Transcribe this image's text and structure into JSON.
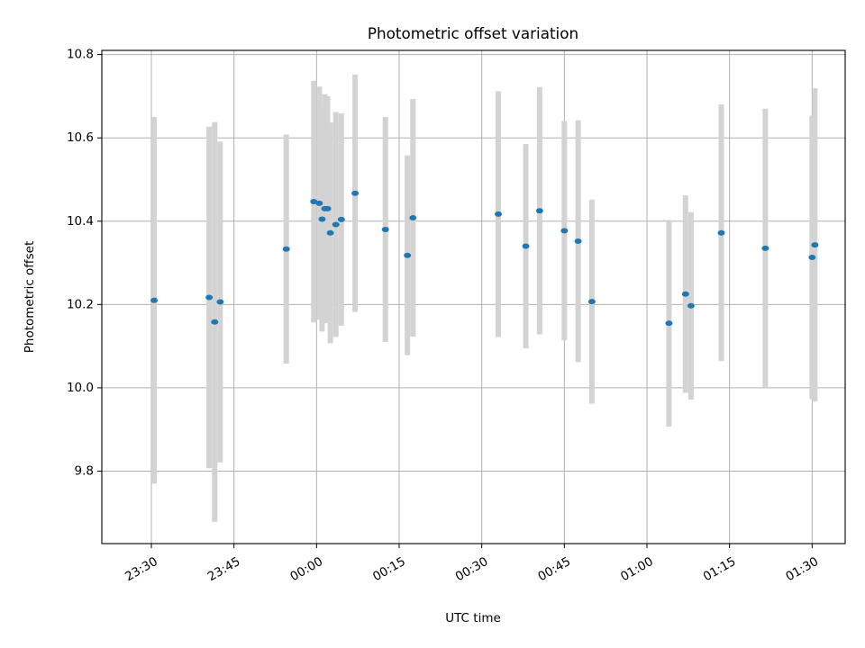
{
  "chart_data": {
    "type": "scatter",
    "title": "Photometric offset variation",
    "xlabel": "UTC time",
    "ylabel": "Photometric offset",
    "xlim": [
      "23:21",
      "01:36"
    ],
    "ylim": [
      9.626,
      10.81
    ],
    "grid": true,
    "x_tick_labels": [
      "23:30",
      "23:45",
      "00:00",
      "00:15",
      "00:30",
      "00:45",
      "01:00",
      "01:15",
      "01:30"
    ],
    "y_ticks": [
      9.8,
      10.0,
      10.2,
      10.4,
      10.6,
      10.8
    ],
    "y_tick_labels": [
      "9.8",
      "10.0",
      "10.2",
      "10.4",
      "10.6",
      "10.8"
    ],
    "series": [
      {
        "marker_color": "#1f77b4",
        "errorbar_color": "#d3d3d3",
        "points": [
          {
            "x": "23:30:30",
            "y": 10.21,
            "err": 0.44
          },
          {
            "x": "23:40:30",
            "y": 10.217,
            "err": 0.41
          },
          {
            "x": "23:41:30",
            "y": 10.158,
            "err": 0.48
          },
          {
            "x": "23:42:30",
            "y": 10.206,
            "err": 0.385
          },
          {
            "x": "23:54:30",
            "y": 10.333,
            "err": 0.275
          },
          {
            "x": "23:59:30",
            "y": 10.447,
            "err": 0.29
          },
          {
            "x": "00:00:30",
            "y": 10.443,
            "err": 0.28
          },
          {
            "x": "00:01:00",
            "y": 10.405,
            "err": 0.27
          },
          {
            "x": "00:01:30",
            "y": 10.43,
            "err": 0.275
          },
          {
            "x": "00:02:00",
            "y": 10.43,
            "err": 0.27
          },
          {
            "x": "00:02:30",
            "y": 10.372,
            "err": 0.265
          },
          {
            "x": "00:03:30",
            "y": 10.392,
            "err": 0.27
          },
          {
            "x": "00:04:30",
            "y": 10.404,
            "err": 0.255
          },
          {
            "x": "00:07:00",
            "y": 10.467,
            "err": 0.285
          },
          {
            "x": "00:12:30",
            "y": 10.38,
            "err": 0.27
          },
          {
            "x": "00:16:30",
            "y": 10.318,
            "err": 0.24
          },
          {
            "x": "00:17:30",
            "y": 10.408,
            "err": 0.285
          },
          {
            "x": "00:33:00",
            "y": 10.417,
            "err": 0.295
          },
          {
            "x": "00:38:00",
            "y": 10.34,
            "err": 0.245
          },
          {
            "x": "00:40:30",
            "y": 10.425,
            "err": 0.297
          },
          {
            "x": "00:45:00",
            "y": 10.377,
            "err": 0.263
          },
          {
            "x": "00:47:30",
            "y": 10.352,
            "err": 0.29
          },
          {
            "x": "00:50:00",
            "y": 10.207,
            "err": 0.245
          },
          {
            "x": "01:04:00",
            "y": 10.155,
            "err": 0.248
          },
          {
            "x": "01:07:00",
            "y": 10.225,
            "err": 0.237
          },
          {
            "x": "01:08:00",
            "y": 10.197,
            "err": 0.225
          },
          {
            "x": "01:13:30",
            "y": 10.372,
            "err": 0.308
          },
          {
            "x": "01:21:30",
            "y": 10.335,
            "err": 0.335
          },
          {
            "x": "01:30:00",
            "y": 10.313,
            "err": 0.34
          },
          {
            "x": "01:30:30",
            "y": 10.343,
            "err": 0.376
          }
        ]
      }
    ]
  }
}
